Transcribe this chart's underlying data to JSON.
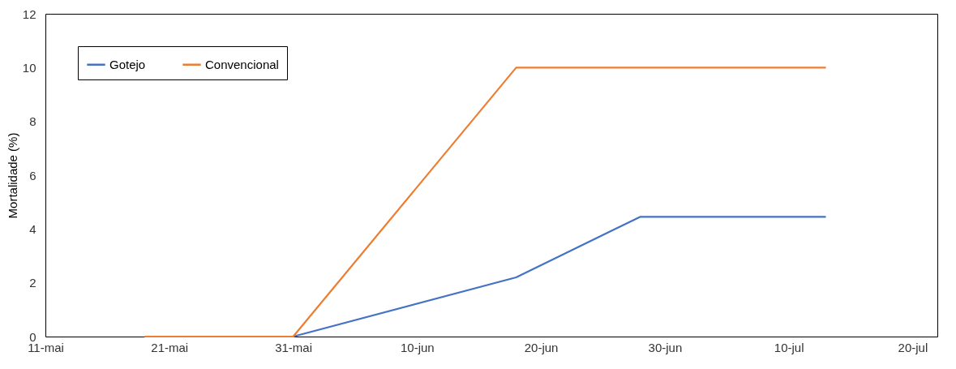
{
  "chart_data": {
    "type": "line",
    "ylabel": "Mortalidade (%)",
    "series": [
      {
        "name": "Gotejo",
        "color": "#4472c4",
        "x": [
          "--05-31",
          "--06-18",
          "--06-28",
          "--07-13"
        ],
        "values": [
          0,
          2.2,
          4.45,
          4.45
        ]
      },
      {
        "name": "Convencional",
        "color": "#ed7d31",
        "x": [
          "--05-19",
          "--05-31",
          "--06-18",
          "--07-13"
        ],
        "values": [
          0,
          0,
          10,
          10
        ]
      }
    ],
    "xlim": [
      "--05-11",
      "--07-22"
    ],
    "xticks": [
      {
        "value": "--05-11",
        "label": "11-mai"
      },
      {
        "value": "--05-21",
        "label": "21-mai"
      },
      {
        "value": "--05-31",
        "label": "31-mai"
      },
      {
        "value": "--06-10",
        "label": "10-jun"
      },
      {
        "value": "--06-20",
        "label": "20-jun"
      },
      {
        "value": "--06-30",
        "label": "30-jun"
      },
      {
        "value": "--07-10",
        "label": "10-jul"
      },
      {
        "value": "--07-20",
        "label": "20-jul"
      }
    ],
    "ylim": [
      0,
      12
    ],
    "yticks": [
      0,
      2,
      4,
      6,
      8,
      10,
      12
    ],
    "legend": "top left",
    "marker": "none",
    "line_style": "solid"
  }
}
